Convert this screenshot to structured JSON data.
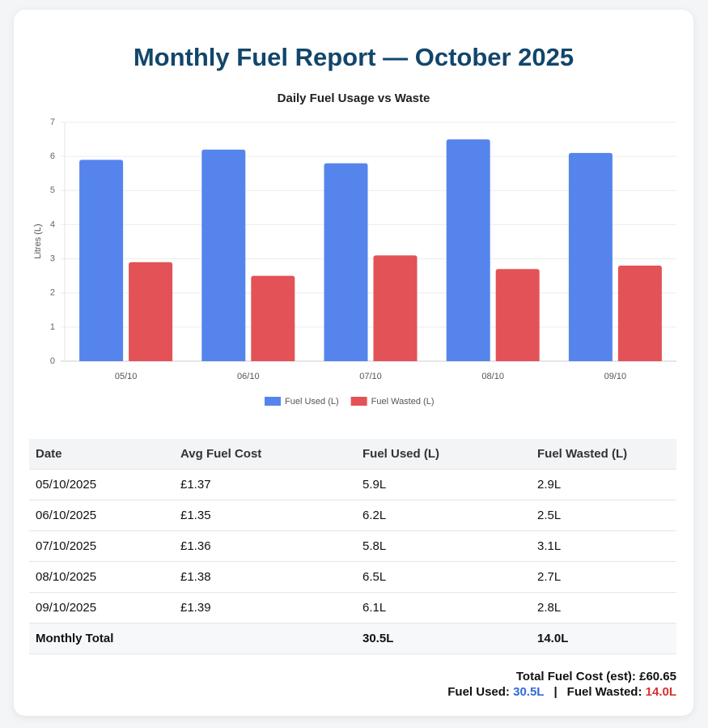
{
  "title": "Monthly Fuel Report — October 2025",
  "chart_data": {
    "type": "bar",
    "title": "Daily Fuel Usage vs Waste",
    "y_label": "Litres (L)",
    "categories": [
      "05/10",
      "06/10",
      "07/10",
      "08/10",
      "09/10"
    ],
    "series": [
      {
        "name": "Fuel Used (L)",
        "color": "#5585ec",
        "values": [
          5.9,
          6.2,
          5.8,
          6.5,
          6.1
        ]
      },
      {
        "name": "Fuel Wasted (L)",
        "color": "#e35256",
        "values": [
          2.9,
          2.5,
          3.1,
          2.7,
          2.8
        ]
      }
    ],
    "ylim": [
      0,
      7
    ],
    "yticks": [
      0,
      1,
      2,
      3,
      4,
      5,
      6,
      7
    ],
    "grid": true,
    "legend": "bottom"
  },
  "table": {
    "header": [
      "Date",
      "Avg Fuel Cost",
      "Fuel Used (L)",
      "Fuel Wasted (L)"
    ],
    "rows": [
      [
        "05/10/2025",
        "£1.37",
        "5.9L",
        "2.9L"
      ],
      [
        "06/10/2025",
        "£1.35",
        "6.2L",
        "2.5L"
      ],
      [
        "07/10/2025",
        "£1.36",
        "5.8L",
        "3.1L"
      ],
      [
        "08/10/2025",
        "£1.38",
        "6.5L",
        "2.7L"
      ],
      [
        "09/10/2025",
        "£1.39",
        "6.1L",
        "2.8L"
      ]
    ],
    "total": {
      "label": "Monthly Total",
      "fuel_used": "30.5L",
      "fuel_wasted": "14.0L"
    }
  },
  "summary": {
    "cost_label": "Total Fuel Cost (est):",
    "cost_value": "£60.65",
    "used_label": "Fuel Used:",
    "used_value": "30.5L",
    "separator": "|",
    "wasted_label": "Fuel Wasted:",
    "wasted_value": "14.0L"
  }
}
